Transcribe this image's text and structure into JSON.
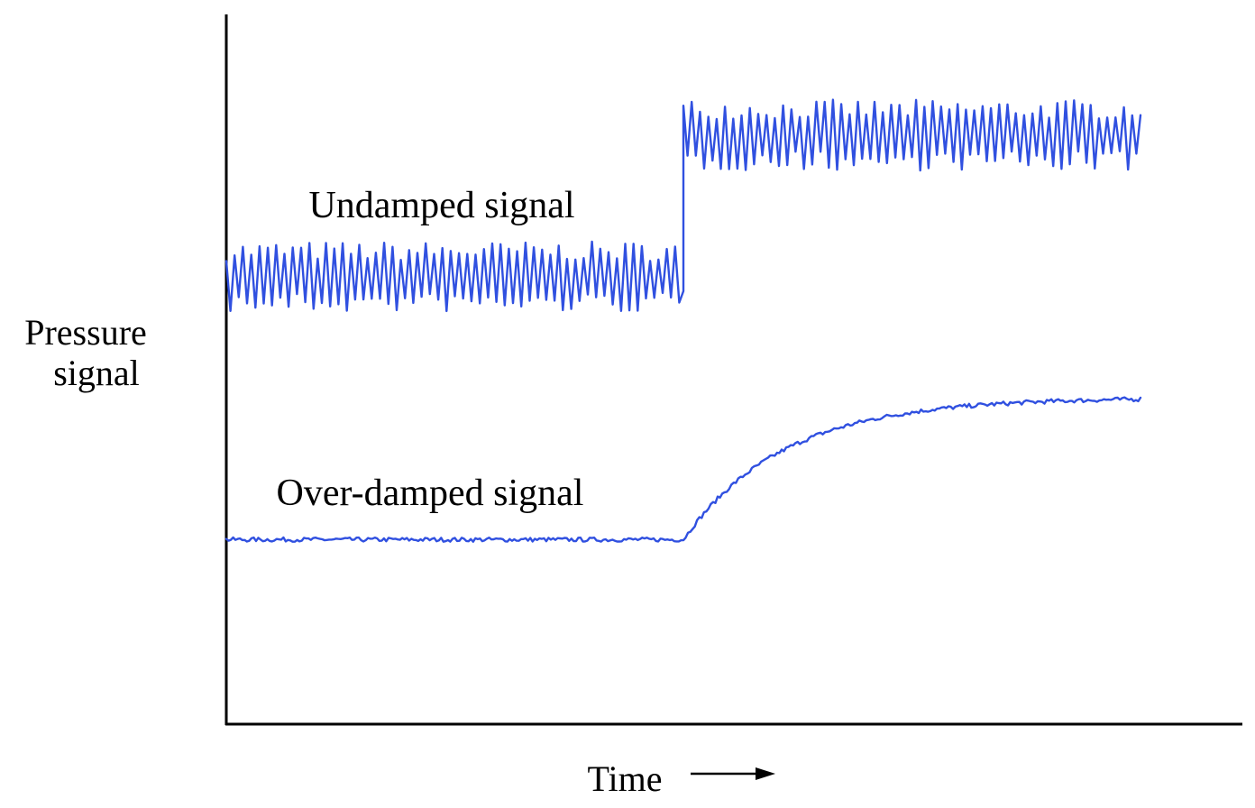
{
  "chart_data": {
    "type": "line",
    "title": "",
    "xlabel": "Time",
    "ylabel_line1": "Pressure",
    "ylabel_line2": "signal",
    "x_ticks": "none",
    "y_ticks": "none",
    "grid": false,
    "legend": "none",
    "x": [
      0,
      0.5,
      0.5,
      1
    ],
    "xlim": [
      0,
      1
    ],
    "ylim": [
      0,
      1
    ],
    "step_at": 0.5,
    "series": [
      {
        "name": "Undamped signal",
        "color": "#3050e0",
        "behavior": "instantaneous step with continuous large oscillation",
        "baseline_before": 0.63,
        "baseline_after": 0.83,
        "oscillation_amplitude": 0.05
      },
      {
        "name": "Over-damped signal",
        "color": "#3050e0",
        "behavior": "slow exponential rise after step",
        "baseline_before": 0.26,
        "baseline_after": 0.46,
        "oscillation_amplitude": 0.003
      }
    ]
  }
}
